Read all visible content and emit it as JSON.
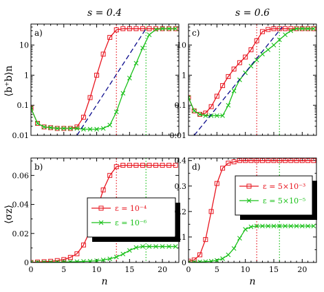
{
  "colors": {
    "red": "#e8141e",
    "green": "#18c018",
    "navy": "#0a0a8c",
    "frame": "#000000"
  },
  "figure": {
    "col_titles": [
      "s = 0.4",
      "s = 0.6"
    ],
    "xlabel": "n",
    "ylabel_top": "⟨b⁺b⟩n",
    "ylabel_bottom": "⟨σz⟩"
  },
  "chart_data": [
    {
      "id": "a",
      "label": "a)",
      "type": "line",
      "yscale": "log",
      "xlim": [
        0,
        22.5
      ],
      "ylim": [
        0.01,
        50
      ],
      "xticks": [
        0,
        5,
        10,
        15,
        20
      ],
      "xtick_labels": [
        "",
        "",
        "",
        "",
        ""
      ],
      "yticks": [
        0.01,
        0.1,
        1,
        10
      ],
      "ytick_labels": [
        "0.01",
        "0.1",
        "1",
        "10"
      ],
      "grid": false,
      "series": [
        {
          "marker": "square",
          "color": "#e8141e",
          "x": [
            0,
            1,
            2,
            3,
            4,
            5,
            6,
            7,
            8,
            9,
            10,
            11,
            12,
            13,
            14,
            15,
            16,
            17,
            18,
            19,
            20,
            21,
            22
          ],
          "y": [
            0.08,
            0.025,
            0.019,
            0.018,
            0.017,
            0.017,
            0.017,
            0.019,
            0.04,
            0.18,
            1.0,
            5.0,
            18,
            32,
            35,
            35,
            35,
            35,
            35,
            35,
            35,
            35,
            35
          ]
        },
        {
          "marker": "x",
          "color": "#18c018",
          "x": [
            0,
            1,
            2,
            3,
            4,
            5,
            6,
            7,
            8,
            9,
            10,
            11,
            12,
            13,
            14,
            15,
            16,
            17,
            18,
            19,
            20,
            21,
            22
          ],
          "y": [
            0.08,
            0.025,
            0.019,
            0.018,
            0.017,
            0.017,
            0.017,
            0.017,
            0.016,
            0.016,
            0.016,
            0.017,
            0.022,
            0.06,
            0.25,
            0.8,
            2.5,
            8,
            22,
            33,
            35,
            35,
            35
          ]
        },
        {
          "style": "dashed",
          "color": "#0a0a8c",
          "x": [
            7,
            17.5
          ],
          "y": [
            0.01,
            35
          ]
        }
      ],
      "vlines": [
        {
          "x": 13,
          "color": "#e8141e"
        },
        {
          "x": 17.5,
          "color": "#18c018"
        }
      ]
    },
    {
      "id": "b",
      "label": "b)",
      "type": "line",
      "yscale": "linear",
      "xlim": [
        0,
        22.5
      ],
      "ylim": [
        0,
        0.072
      ],
      "xticks": [
        0,
        5,
        10,
        15,
        20
      ],
      "xtick_labels": [
        "0",
        "5",
        "10",
        "15",
        "20"
      ],
      "yticks": [
        0,
        0.02,
        0.04,
        0.06
      ],
      "ytick_labels": [
        "0",
        "0.02",
        "0.04",
        "0.06"
      ],
      "grid": false,
      "series": [
        {
          "name": "ε = 10⁻⁴",
          "marker": "square",
          "color": "#e8141e",
          "x": [
            0,
            1,
            2,
            3,
            4,
            5,
            6,
            7,
            8,
            9,
            10,
            11,
            12,
            13,
            14,
            15,
            16,
            17,
            18,
            19,
            20,
            21,
            22
          ],
          "y": [
            0,
            0.0003,
            0.0005,
            0.0008,
            0.0013,
            0.002,
            0.0035,
            0.006,
            0.012,
            0.022,
            0.036,
            0.05,
            0.06,
            0.066,
            0.067,
            0.067,
            0.067,
            0.067,
            0.067,
            0.067,
            0.067,
            0.067,
            0.067
          ]
        },
        {
          "name": "ε = 10⁻⁶",
          "marker": "x",
          "color": "#18c018",
          "x": [
            0,
            1,
            2,
            3,
            4,
            5,
            6,
            7,
            8,
            9,
            10,
            11,
            12,
            13,
            14,
            15,
            16,
            17,
            18,
            19,
            20,
            21,
            22
          ],
          "y": [
            0,
            5e-05,
            0.0001,
            0.00015,
            0.0002,
            0.0003,
            0.0004,
            0.0005,
            0.0007,
            0.0009,
            0.0012,
            0.0017,
            0.0025,
            0.0038,
            0.0058,
            0.0083,
            0.0103,
            0.011,
            0.011,
            0.011,
            0.011,
            0.011,
            0.011
          ]
        }
      ],
      "vlines": [
        {
          "x": 13,
          "color": "#e8141e"
        },
        {
          "x": 17.5,
          "color": "#18c018"
        }
      ],
      "legend": "center-right"
    },
    {
      "id": "c",
      "label": "c)",
      "type": "line",
      "yscale": "log",
      "xlim": [
        0,
        22.5
      ],
      "ylim": [
        0.01,
        50
      ],
      "xticks": [
        0,
        5,
        10,
        15,
        20
      ],
      "xtick_labels": [
        "",
        "",
        "",
        "",
        ""
      ],
      "yticks": [
        0.01,
        0.1,
        1,
        10
      ],
      "ytick_labels": [
        "0.01",
        "0.1",
        "1",
        "10"
      ],
      "grid": false,
      "series": [
        {
          "marker": "square",
          "color": "#e8141e",
          "x": [
            0,
            1,
            2,
            3,
            4,
            5,
            6,
            7,
            8,
            9,
            10,
            11,
            12,
            13,
            14,
            15,
            16,
            17,
            18,
            19,
            20,
            21,
            22
          ],
          "y": [
            0.18,
            0.065,
            0.05,
            0.055,
            0.09,
            0.2,
            0.45,
            0.9,
            1.6,
            2.6,
            4.0,
            7,
            14,
            28,
            33,
            35,
            35,
            35,
            35,
            35,
            35,
            35,
            35
          ]
        },
        {
          "marker": "x",
          "color": "#18c018",
          "x": [
            0,
            1,
            2,
            3,
            4,
            5,
            6,
            7,
            8,
            9,
            10,
            11,
            12,
            13,
            14,
            15,
            16,
            17,
            18,
            19,
            20,
            21,
            22
          ],
          "y": [
            0.18,
            0.065,
            0.05,
            0.045,
            0.045,
            0.045,
            0.045,
            0.1,
            0.3,
            0.7,
            1.2,
            2.0,
            3.2,
            5,
            7,
            10,
            15,
            22,
            30,
            35,
            35,
            35,
            35
          ]
        },
        {
          "style": "dashed",
          "color": "#0a0a8c",
          "x": [
            1,
            16.5
          ],
          "y": [
            0.01,
            40
          ]
        }
      ],
      "vlines": [
        {
          "x": 12,
          "color": "#e8141e"
        },
        {
          "x": 16,
          "color": "#18c018"
        }
      ]
    },
    {
      "id": "d",
      "label": "d)",
      "type": "line",
      "yscale": "linear",
      "xlim": [
        0,
        22.5
      ],
      "ylim": [
        0,
        0.41
      ],
      "xticks": [
        0,
        5,
        10,
        15,
        20
      ],
      "xtick_labels": [
        "0",
        "5",
        "10",
        "15",
        "20"
      ],
      "yticks": [
        0,
        0.1,
        0.2,
        0.3,
        0.4
      ],
      "ytick_labels": [
        "0",
        "0.1",
        "0.2",
        "0.3",
        "0.4"
      ],
      "grid": false,
      "series": [
        {
          "name": "ε = 5×10⁻³",
          "marker": "square",
          "color": "#e8141e",
          "x": [
            0,
            1,
            2,
            3,
            4,
            5,
            6,
            7,
            8,
            9,
            10,
            11,
            12,
            13,
            14,
            15,
            16,
            17,
            18,
            19,
            20,
            21,
            22
          ],
          "y": [
            0.005,
            0.01,
            0.03,
            0.09,
            0.2,
            0.31,
            0.37,
            0.39,
            0.395,
            0.4,
            0.4,
            0.4,
            0.4,
            0.4,
            0.4,
            0.4,
            0.4,
            0.4,
            0.4,
            0.4,
            0.4,
            0.4,
            0.4
          ]
        },
        {
          "name": "ε = 5×10⁻⁵",
          "marker": "x",
          "color": "#18c018",
          "x": [
            0,
            1,
            2,
            3,
            4,
            5,
            6,
            7,
            8,
            9,
            10,
            11,
            12,
            13,
            14,
            15,
            16,
            17,
            18,
            19,
            20,
            21,
            22
          ],
          "y": [
            0,
            0.001,
            0.002,
            0.003,
            0.005,
            0.008,
            0.015,
            0.03,
            0.055,
            0.095,
            0.13,
            0.14,
            0.143,
            0.143,
            0.143,
            0.143,
            0.143,
            0.143,
            0.143,
            0.143,
            0.143,
            0.143,
            0.143
          ]
        }
      ],
      "vlines": [
        {
          "x": 12,
          "color": "#e8141e"
        },
        {
          "x": 16,
          "color": "#18c018"
        }
      ],
      "legend": "upper-right"
    }
  ]
}
